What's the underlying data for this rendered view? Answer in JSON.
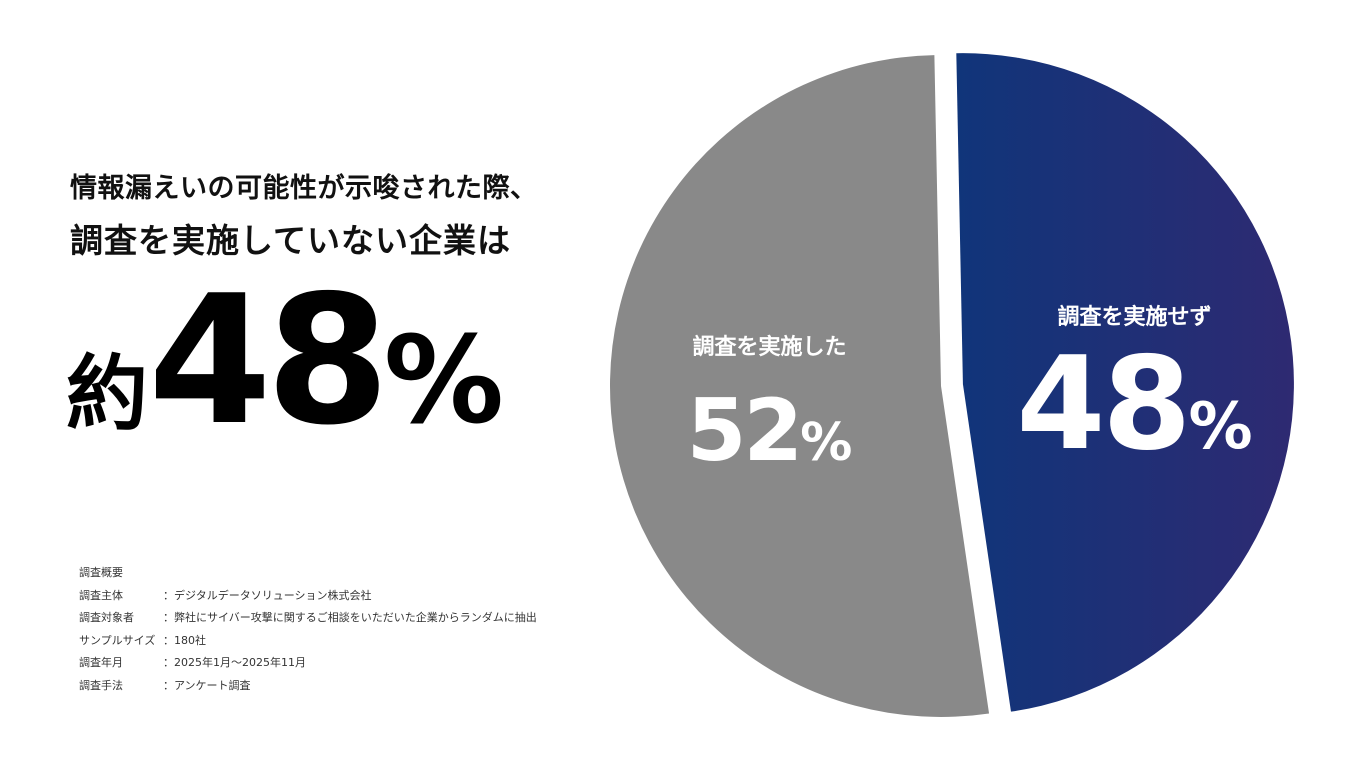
{
  "headline": {
    "line1": "情報漏えいの可能性が示唆された際、",
    "line2": "調査を実施していない企業は"
  },
  "highlight": {
    "prefix": "約",
    "value": "48",
    "unit": "%"
  },
  "survey": {
    "title": "調査概要",
    "rows": [
      {
        "label": "調査主体",
        "value": "：デジタルデータソリューション株式会社"
      },
      {
        "label": "調査対象者",
        "value": "：弊社にサイバー攻撃に関するご相談をいただいた企業からランダムに抽出"
      },
      {
        "label": "サンプルサイズ",
        "value": "：180社"
      },
      {
        "label": "調査年月",
        "value": "：2025年1月〜2025年11月"
      },
      {
        "label": "調査手法",
        "value": "：アンケート調査"
      }
    ]
  },
  "chart_data": {
    "type": "pie",
    "slices": [
      {
        "label": "調査を実施した",
        "value": 52,
        "display": "52",
        "unit": "%",
        "color": "#898989"
      },
      {
        "label": "調査を実施せず",
        "value": 48,
        "display": "48",
        "unit": "%",
        "color": "#10357a",
        "color_end": "#2e2a72",
        "exploded": true
      }
    ]
  }
}
